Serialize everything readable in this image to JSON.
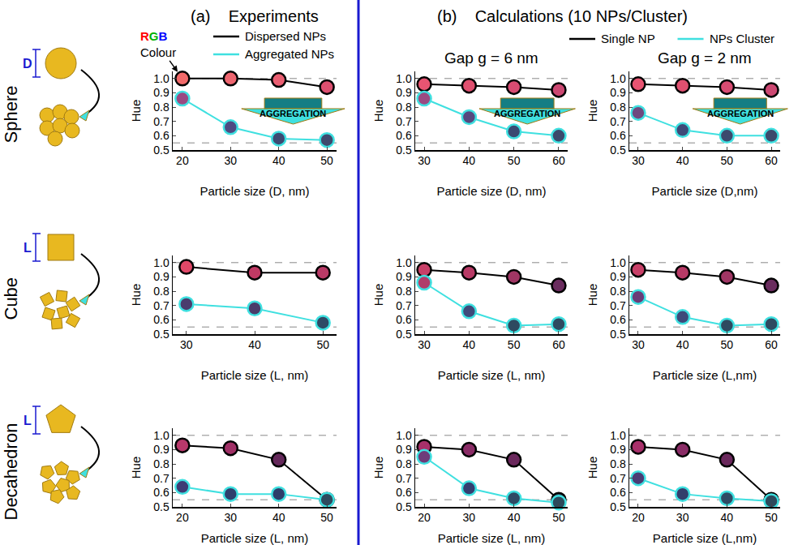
{
  "figure": {
    "panels": [
      {
        "letter": "(a)",
        "title": "Experiments"
      },
      {
        "letter": "(b)",
        "title": "Calculations (10 NPs/Cluster)"
      }
    ],
    "rows": [
      "Sphere",
      "Cube",
      "Decahedron"
    ],
    "size_labels": [
      "D",
      "L",
      "L"
    ]
  },
  "chart_data": [
    {
      "type": "line",
      "x_label": "Particle size (D, nm)",
      "y_label": "Hue",
      "legend": "top",
      "point_note": "RGB Colour",
      "arrow_note": "AGGREGATION",
      "x": [
        20,
        30,
        40,
        50
      ],
      "xlim": [
        18,
        52
      ],
      "xticks": [
        20,
        30,
        40,
        50
      ],
      "ylim": [
        0.5,
        1.05
      ],
      "yticks": [
        0.5,
        0.6,
        0.7,
        0.8,
        0.9,
        {
          "value": 1,
          "label": "1.0"
        }
      ],
      "grid": false,
      "reference_lines": [
        1,
        0.55
      ],
      "series": [
        {
          "name": "Dispersed NPs",
          "color": "#000000",
          "marker": "circle",
          "values": [
            1.0,
            1.0,
            0.99,
            0.94
          ],
          "colors": [
            "#f26a6a",
            "#ee6670",
            "#ea5f72",
            "#dc5070"
          ]
        },
        {
          "name": "Aggregated NPs",
          "color": "#3fe0e0",
          "marker": "circle",
          "values": [
            0.86,
            0.66,
            0.58,
            0.57
          ],
          "colors": [
            "#9a4a82",
            "#4e4a82",
            "#3e4a72",
            "#3e4a6e"
          ]
        }
      ]
    },
    {
      "type": "line",
      "title": "Gap g = 6 nm",
      "x_label": "Particle size (D, nm)",
      "y_label": "Hue",
      "legend": "top",
      "arrow_note": "AGGREGATION",
      "x": [
        30,
        40,
        50,
        60
      ],
      "xlim": [
        28,
        62
      ],
      "xticks": [
        30,
        40,
        50,
        60
      ],
      "ylim": [
        0.5,
        1.05
      ],
      "yticks": [
        0.5,
        0.6,
        0.7,
        0.8,
        0.9,
        {
          "value": 1,
          "label": "1.0"
        }
      ],
      "grid": false,
      "reference_lines": [
        1,
        0.55
      ],
      "series": [
        {
          "name": "Single NP",
          "color": "#000000",
          "marker": "circle",
          "values": [
            0.96,
            0.95,
            0.94,
            0.92
          ],
          "colors": [
            "#e85472",
            "#e05070",
            "#d84c72",
            "#cc4872"
          ]
        },
        {
          "name": "NPs Cluster",
          "color": "#3fe0e0",
          "marker": "circle",
          "values": [
            0.86,
            0.73,
            0.63,
            0.6
          ],
          "colors": [
            "#9a4a82",
            "#56487e",
            "#3a4a72",
            "#3c4a6c"
          ]
        }
      ]
    },
    {
      "type": "line",
      "title": "Gap g = 2 nm",
      "x_label": "Particle size (D,nm)",
      "y_label": "Hue",
      "arrow_note": "AGGREGATION",
      "x": [
        30,
        40,
        50,
        60
      ],
      "xlim": [
        28,
        62
      ],
      "xticks": [
        30,
        40,
        50,
        60
      ],
      "ylim": [
        0.5,
        1.05
      ],
      "yticks": [
        0.5,
        0.6,
        0.7,
        0.8,
        0.9,
        {
          "value": 1,
          "label": "1.0"
        }
      ],
      "grid": false,
      "reference_lines": [
        1,
        0.55
      ],
      "series": [
        {
          "name": "Single NP",
          "color": "#000000",
          "marker": "circle",
          "values": [
            0.96,
            0.95,
            0.94,
            0.92
          ],
          "colors": [
            "#e85472",
            "#e05070",
            "#d84c72",
            "#cc4872"
          ]
        },
        {
          "name": "NPs Cluster",
          "color": "#3fe0e0",
          "marker": "circle",
          "values": [
            0.76,
            0.64,
            0.6,
            0.6
          ],
          "colors": [
            "#6e4a80",
            "#3e4a78",
            "#3c4a6e",
            "#3c4a6c"
          ]
        }
      ]
    },
    {
      "type": "line",
      "x_label": "Particle size (L, nm)",
      "y_label": "Hue",
      "x": [
        30,
        40,
        50
      ],
      "xlim": [
        28,
        52
      ],
      "xticks": [
        30,
        40,
        50
      ],
      "ylim": [
        0.5,
        1.05
      ],
      "yticks": [
        0.5,
        0.6,
        0.7,
        0.8,
        0.9,
        {
          "value": 1,
          "label": "1.0"
        }
      ],
      "grid": false,
      "reference_lines": [
        1,
        0.55
      ],
      "series": [
        {
          "name": "Dispersed NPs",
          "color": "#000000",
          "marker": "circle",
          "values": [
            0.97,
            0.93,
            0.93
          ],
          "colors": [
            "#e04868",
            "#c03a64",
            "#b83a66"
          ]
        },
        {
          "name": "Aggregated NPs",
          "color": "#3fe0e0",
          "marker": "circle",
          "values": [
            0.71,
            0.68,
            0.58
          ],
          "colors": [
            "#4a3c6e",
            "#4a3c6a",
            "#2e4a66"
          ]
        }
      ]
    },
    {
      "type": "line",
      "x_label": "Particle size (L, nm)",
      "y_label": "Hue",
      "x": [
        30,
        40,
        50,
        60
      ],
      "xlim": [
        28,
        62
      ],
      "xticks": [
        30,
        40,
        50,
        60
      ],
      "ylim": [
        0.5,
        1.05
      ],
      "yticks": [
        0.5,
        0.6,
        0.7,
        0.8,
        0.9,
        {
          "value": 1,
          "label": "1.0"
        }
      ],
      "grid": false,
      "reference_lines": [
        1,
        0.55
      ],
      "series": [
        {
          "name": "Single NP",
          "color": "#000000",
          "marker": "circle",
          "values": [
            0.95,
            0.93,
            0.9,
            0.84
          ],
          "colors": [
            "#c84068",
            "#b83a66",
            "#a03664",
            "#6a2c5e"
          ]
        },
        {
          "name": "NPs Cluster",
          "color": "#3fe0e0",
          "marker": "circle",
          "values": [
            0.86,
            0.66,
            0.56,
            0.57
          ],
          "colors": [
            "#b03c6a",
            "#3e4a7a",
            "#2e4a60",
            "#2e4a60"
          ]
        }
      ]
    },
    {
      "type": "line",
      "x_label": "Particle size (L,nm)",
      "y_label": "Hue",
      "x": [
        30,
        40,
        50,
        60
      ],
      "xlim": [
        28,
        62
      ],
      "xticks": [
        30,
        40,
        50,
        60
      ],
      "ylim": [
        0.5,
        1.05
      ],
      "yticks": [
        0.5,
        0.6,
        0.7,
        0.8,
        0.9,
        {
          "value": 1,
          "label": "1.0"
        }
      ],
      "grid": false,
      "reference_lines": [
        1,
        0.55
      ],
      "series": [
        {
          "name": "Single NP",
          "color": "#000000",
          "marker": "circle",
          "values": [
            0.95,
            0.93,
            0.9,
            0.84
          ],
          "colors": [
            "#c84068",
            "#b83a66",
            "#a03664",
            "#6a2c5e"
          ]
        },
        {
          "name": "NPs Cluster",
          "color": "#3fe0e0",
          "marker": "circle",
          "values": [
            0.76,
            0.62,
            0.56,
            0.57
          ],
          "colors": [
            "#6a3c78",
            "#3e4a7a",
            "#2e4a60",
            "#2e4a60"
          ]
        }
      ]
    },
    {
      "type": "line",
      "x_label": "Particle size (L, nm)",
      "y_label": "Hue",
      "x": [
        20,
        30,
        40,
        50
      ],
      "xlim": [
        18,
        52
      ],
      "xticks": [
        20,
        30,
        40,
        50
      ],
      "ylim": [
        0.5,
        1.05
      ],
      "yticks": [
        0.5,
        0.6,
        0.7,
        0.8,
        0.9,
        {
          "value": 1,
          "label": "1.0"
        }
      ],
      "grid": false,
      "reference_lines": [
        1,
        0.55
      ],
      "series": [
        {
          "name": "Dispersed NPs",
          "color": "#000000",
          "marker": "circle",
          "values": [
            0.93,
            0.91,
            0.83,
            0.55
          ],
          "colors": [
            "#b8386a",
            "#a03066",
            "#64285a",
            "#2e4a5e"
          ]
        },
        {
          "name": "Aggregated NPs",
          "color": "#3fe0e0",
          "marker": "circle",
          "values": [
            0.64,
            0.59,
            0.59,
            0.55
          ],
          "colors": [
            "#3e3c74",
            "#2e3e6c",
            "#2e3e6a",
            "#2e4a5e"
          ]
        }
      ]
    },
    {
      "type": "line",
      "x_label": "Particle size (L, nm)",
      "y_label": "Hue",
      "x": [
        20,
        30,
        40,
        50
      ],
      "xlim": [
        18,
        52
      ],
      "xticks": [
        20,
        30,
        40,
        50
      ],
      "ylim": [
        0.5,
        1.05
      ],
      "yticks": [
        0.5,
        0.6,
        0.7,
        0.8,
        0.9,
        {
          "value": 1,
          "label": "1.0"
        }
      ],
      "grid": false,
      "reference_lines": [
        1,
        0.55
      ],
      "series": [
        {
          "name": "Single NP",
          "color": "#000000",
          "marker": "circle",
          "values": [
            0.92,
            0.9,
            0.83,
            0.55
          ],
          "colors": [
            "#a8306a",
            "#8a2c66",
            "#6a285c",
            "#2e4a5e"
          ]
        },
        {
          "name": "NPs Cluster",
          "color": "#3fe0e0",
          "marker": "circle",
          "values": [
            0.85,
            0.63,
            0.56,
            0.53
          ],
          "colors": [
            "#6e3c7a",
            "#343e70",
            "#2e4a64",
            "#2c4a5c"
          ]
        }
      ]
    },
    {
      "type": "line",
      "x_label": "Particle size (L,nm)",
      "y_label": "Hue",
      "x": [
        20,
        30,
        40,
        50
      ],
      "xlim": [
        18,
        52
      ],
      "xticks": [
        20,
        30,
        40,
        50
      ],
      "ylim": [
        0.5,
        1.05
      ],
      "yticks": [
        0.5,
        0.6,
        0.7,
        0.8,
        0.9,
        {
          "value": 1,
          "label": "1.0"
        }
      ],
      "grid": false,
      "reference_lines": [
        1,
        0.55
      ],
      "series": [
        {
          "name": "Single NP",
          "color": "#000000",
          "marker": "circle",
          "values": [
            0.92,
            0.9,
            0.83,
            0.55
          ],
          "colors": [
            "#a8306a",
            "#8a2c66",
            "#6a285c",
            "#2e4a5e"
          ]
        },
        {
          "name": "NPs Cluster",
          "color": "#3fe0e0",
          "marker": "circle",
          "values": [
            0.7,
            0.59,
            0.56,
            0.54
          ],
          "colors": [
            "#4a3c74",
            "#323e6c",
            "#2e4a64",
            "#2c4a5c"
          ]
        }
      ]
    }
  ]
}
